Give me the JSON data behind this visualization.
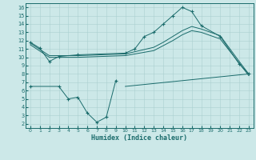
{
  "background_color": "#cce8e8",
  "grid_color": "#aad0d0",
  "line_color": "#1a6b6b",
  "xlabel": "Humidex (Indice chaleur)",
  "xlim": [
    -0.5,
    23.5
  ],
  "ylim": [
    1.5,
    16.5
  ],
  "xticks": [
    0,
    1,
    2,
    3,
    4,
    5,
    6,
    7,
    8,
    9,
    10,
    11,
    12,
    13,
    14,
    15,
    16,
    17,
    18,
    19,
    20,
    21,
    22,
    23
  ],
  "yticks": [
    2,
    3,
    4,
    5,
    6,
    7,
    8,
    9,
    10,
    11,
    12,
    13,
    14,
    15,
    16
  ],
  "line1_x": [
    0,
    1,
    2,
    3,
    5,
    10,
    11,
    12,
    13,
    14,
    15,
    16,
    17,
    18,
    20,
    22,
    23
  ],
  "line1_y": [
    11.8,
    11.1,
    9.5,
    10.1,
    10.3,
    10.5,
    11.0,
    12.5,
    13.0,
    14.0,
    15.0,
    16.0,
    15.5,
    13.8,
    12.5,
    9.2,
    8.0
  ],
  "line2_x": [
    0,
    2,
    5,
    10,
    13,
    14,
    15,
    16,
    17,
    18,
    19,
    20,
    22,
    23
  ],
  "line2_y": [
    11.7,
    10.2,
    10.2,
    10.4,
    11.2,
    11.8,
    12.5,
    13.2,
    13.7,
    13.4,
    13.0,
    12.6,
    9.5,
    8.0
  ],
  "line3_x": [
    0,
    2,
    5,
    10,
    13,
    14,
    15,
    16,
    17,
    18,
    19,
    20,
    22,
    23
  ],
  "line3_y": [
    11.5,
    10.0,
    10.0,
    10.2,
    10.8,
    11.4,
    12.0,
    12.7,
    13.2,
    13.0,
    12.6,
    12.2,
    9.3,
    7.8
  ],
  "line4_x": [
    0,
    3,
    4,
    5,
    6,
    7,
    8,
    9,
    10,
    23
  ],
  "line4_y": [
    6.5,
    6.5,
    5.0,
    5.2,
    3.3,
    2.2,
    2.8,
    7.2,
    6.5,
    8.0
  ],
  "line5_x": [
    10,
    23
  ],
  "line5_y": [
    6.5,
    8.0
  ]
}
